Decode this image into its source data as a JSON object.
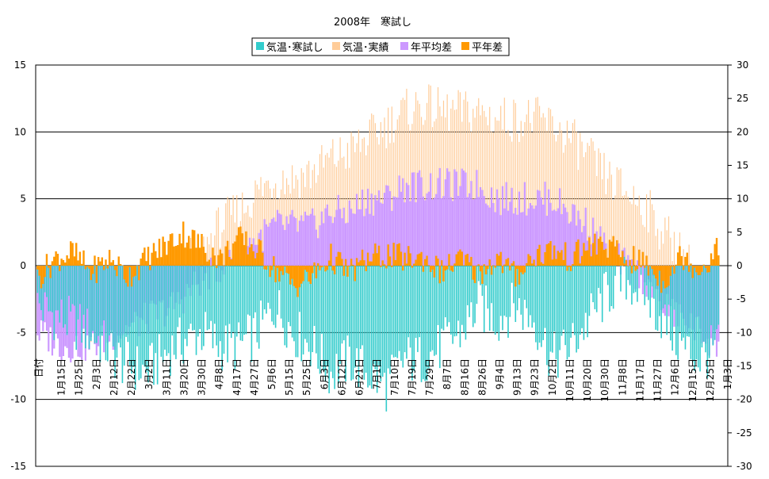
{
  "chart_data": {
    "type": "bar",
    "title": "2008年　寒試し",
    "legend": {
      "placement": "top",
      "entries": [
        {
          "name": "気温･寒試し",
          "color": "#33CCCC"
        },
        {
          "name": "気温･実績",
          "color": "#FFCC99"
        },
        {
          "name": "年平均差",
          "color": "#CC99FF"
        },
        {
          "name": "平年差",
          "color": "#FF9900"
        }
      ]
    },
    "left_axis": {
      "min": -15,
      "max": 15,
      "step": 5,
      "ticks": [
        "15",
        "10",
        "5",
        "0",
        "-5",
        "-10",
        "-15"
      ]
    },
    "right_axis": {
      "min": -30,
      "max": 30,
      "step": 5,
      "ticks": [
        "30",
        "25",
        "20",
        "15",
        "10",
        "5",
        "0",
        "-5",
        "-10",
        "-15",
        "-20",
        "-25",
        "-30"
      ]
    },
    "category_axis": {
      "first_label": "日付",
      "labels": [
        "1月15日",
        "1月25日",
        "2月3日",
        "2月12日",
        "2月22日",
        "3月2日",
        "3月11日",
        "3月20日",
        "3月30日",
        "4月8日",
        "4月17日",
        "4月27日",
        "5月6日",
        "5月15日",
        "5月25日",
        "6月3日",
        "6月12日",
        "6月21日",
        "7月1日",
        "7月10日",
        "7月19日",
        "7月29日",
        "8月7日",
        "8月16日",
        "8月26日",
        "9月4日",
        "9月13日",
        "9月23日",
        "10月2日",
        "10月11日",
        "10月20日",
        "10月30日",
        "11月8日",
        "11月17日",
        "11月27日",
        "12月6日",
        "12月15日",
        "12月25日",
        "1月3日"
      ]
    },
    "grid": true,
    "series": [
      {
        "name": "気温･寒試し",
        "axis": "left",
        "style": "bar",
        "day": [
          1,
          15,
          30,
          45,
          60,
          75,
          90,
          100,
          110,
          120,
          130,
          140,
          150,
          160,
          170,
          180,
          190,
          200,
          210,
          220,
          230,
          240,
          250,
          260,
          270,
          280,
          290,
          300,
          310,
          320,
          330,
          340,
          350,
          360,
          370
        ],
        "value": [
          -3,
          -4,
          -5,
          -7,
          -8,
          -6,
          -5,
          -6,
          -6,
          -5,
          -3,
          -5,
          -6,
          -8,
          -7,
          -8,
          -9,
          -7,
          -7,
          -6,
          -5,
          -3,
          -4,
          -3,
          -4,
          -7,
          -6,
          -4,
          -2,
          -1,
          -2,
          -4,
          -6,
          -7,
          -6
        ]
      },
      {
        "name": "気温･実績",
        "axis": "right",
        "style": "thin-bar",
        "day": [
          1,
          15,
          30,
          45,
          60,
          75,
          90,
          100,
          110,
          120,
          130,
          140,
          150,
          160,
          170,
          180,
          190,
          200,
          210,
          220,
          230,
          240,
          250,
          260,
          270,
          280,
          290,
          300,
          310,
          320,
          330,
          340,
          350,
          360,
          370
        ],
        "value": [
          -4,
          -6,
          -8,
          -6,
          -4,
          -1,
          2,
          6,
          8,
          11,
          13,
          13,
          14,
          16,
          17,
          19,
          21,
          23,
          24,
          23,
          23,
          23,
          22,
          22,
          22,
          21,
          19,
          16,
          13,
          11,
          9,
          5,
          2,
          -3,
          -5
        ]
      },
      {
        "name": "年平均差",
        "axis": "left",
        "style": "thin-bar",
        "day": [
          1,
          15,
          30,
          45,
          60,
          75,
          90,
          100,
          110,
          120,
          130,
          140,
          150,
          160,
          170,
          180,
          190,
          200,
          210,
          220,
          230,
          240,
          250,
          260,
          270,
          280,
          290,
          300,
          310,
          320,
          330,
          340,
          350,
          360,
          370
        ],
        "value": [
          -5,
          -6,
          -6,
          -5,
          -4,
          -3,
          -1,
          0,
          1,
          2,
          3,
          3,
          3,
          4,
          4,
          5,
          5,
          6,
          6,
          6,
          6,
          6,
          5,
          5,
          5,
          5,
          4,
          3,
          1,
          0,
          -1,
          -3,
          -4,
          -5,
          -6
        ]
      },
      {
        "name": "平年差",
        "axis": "left",
        "style": "bar",
        "day": [
          1,
          10,
          20,
          30,
          40,
          50,
          60,
          70,
          80,
          90,
          100,
          110,
          120,
          130,
          140,
          150,
          160,
          170,
          180,
          190,
          200,
          210,
          220,
          230,
          240,
          250,
          260,
          270,
          280,
          290,
          300,
          310,
          320,
          330,
          340,
          350,
          360,
          370
        ],
        "value": [
          -1,
          0.5,
          1,
          -0.5,
          0.5,
          -0.8,
          0.5,
          1.5,
          2.5,
          1.5,
          0.5,
          2,
          1.2,
          -0.3,
          -1.5,
          -0.8,
          0.6,
          -0.5,
          0.5,
          0.8,
          0.5,
          0.6,
          -0.5,
          0.5,
          -0.6,
          0.6,
          -0.8,
          0.8,
          1.2,
          0.5,
          1.5,
          1.5,
          0.5,
          0.2,
          -1.2,
          0.8,
          -0.3,
          1.2
        ]
      }
    ]
  }
}
